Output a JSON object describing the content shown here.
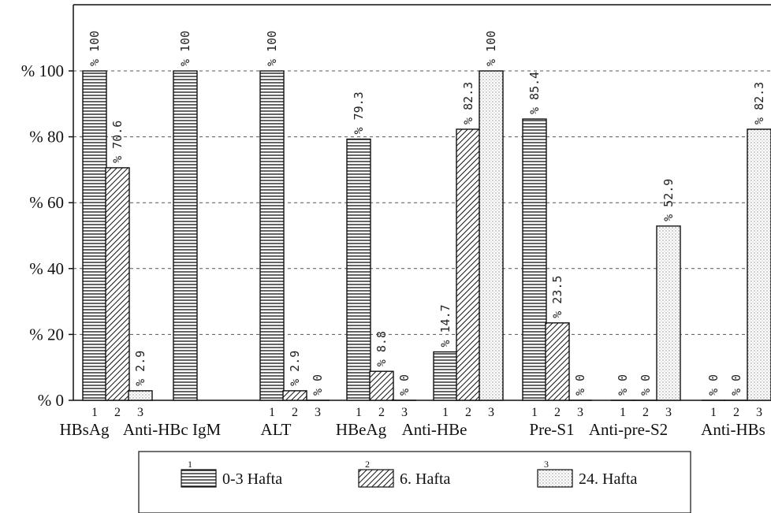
{
  "chart_data": {
    "type": "bar",
    "title": "",
    "xlabel": "",
    "ylabel": "",
    "ylim": [
      0,
      100
    ],
    "y_ticks": [
      "% 0",
      "% 20",
      "% 40",
      "% 60",
      "% 80",
      "% 100"
    ],
    "grid": true,
    "group_tick_labels": [
      "1",
      "2",
      "3"
    ],
    "categories": [
      "HBsAg",
      "Anti-HBc IgM",
      "ALT",
      "HBeAg",
      "Anti-HBe",
      "Pre-S1",
      "Anti-pre-S2",
      "Anti-HBs"
    ],
    "series": [
      {
        "name": "0-3 Hafta",
        "legend_number": "1",
        "pattern": "horizontal-lines",
        "values": [
          100,
          100,
          100,
          79.3,
          14.7,
          85.4,
          0,
          0
        ],
        "labels": [
          "100",
          "100",
          "100",
          "79.3",
          "14.7",
          "85.4",
          "0",
          "0"
        ]
      },
      {
        "name": "6. Hafta",
        "legend_number": "2",
        "pattern": "diagonal-hatch",
        "values": [
          70.6,
          null,
          2.9,
          8.8,
          82.3,
          23.5,
          0,
          0
        ],
        "labels": [
          "70.6",
          "",
          "2.9",
          "8.8",
          "82.3",
          "23.5",
          "0",
          "0"
        ]
      },
      {
        "name": "24. Hafta",
        "legend_number": "3",
        "pattern": "dots",
        "values": [
          2.9,
          null,
          0,
          0,
          100,
          0,
          52.9,
          82.3
        ],
        "labels": [
          "2.9",
          "",
          "0",
          "0",
          "100",
          "0",
          "52.9",
          "82.3"
        ]
      }
    ],
    "value_prefix": "%",
    "legend_position": "bottom"
  }
}
